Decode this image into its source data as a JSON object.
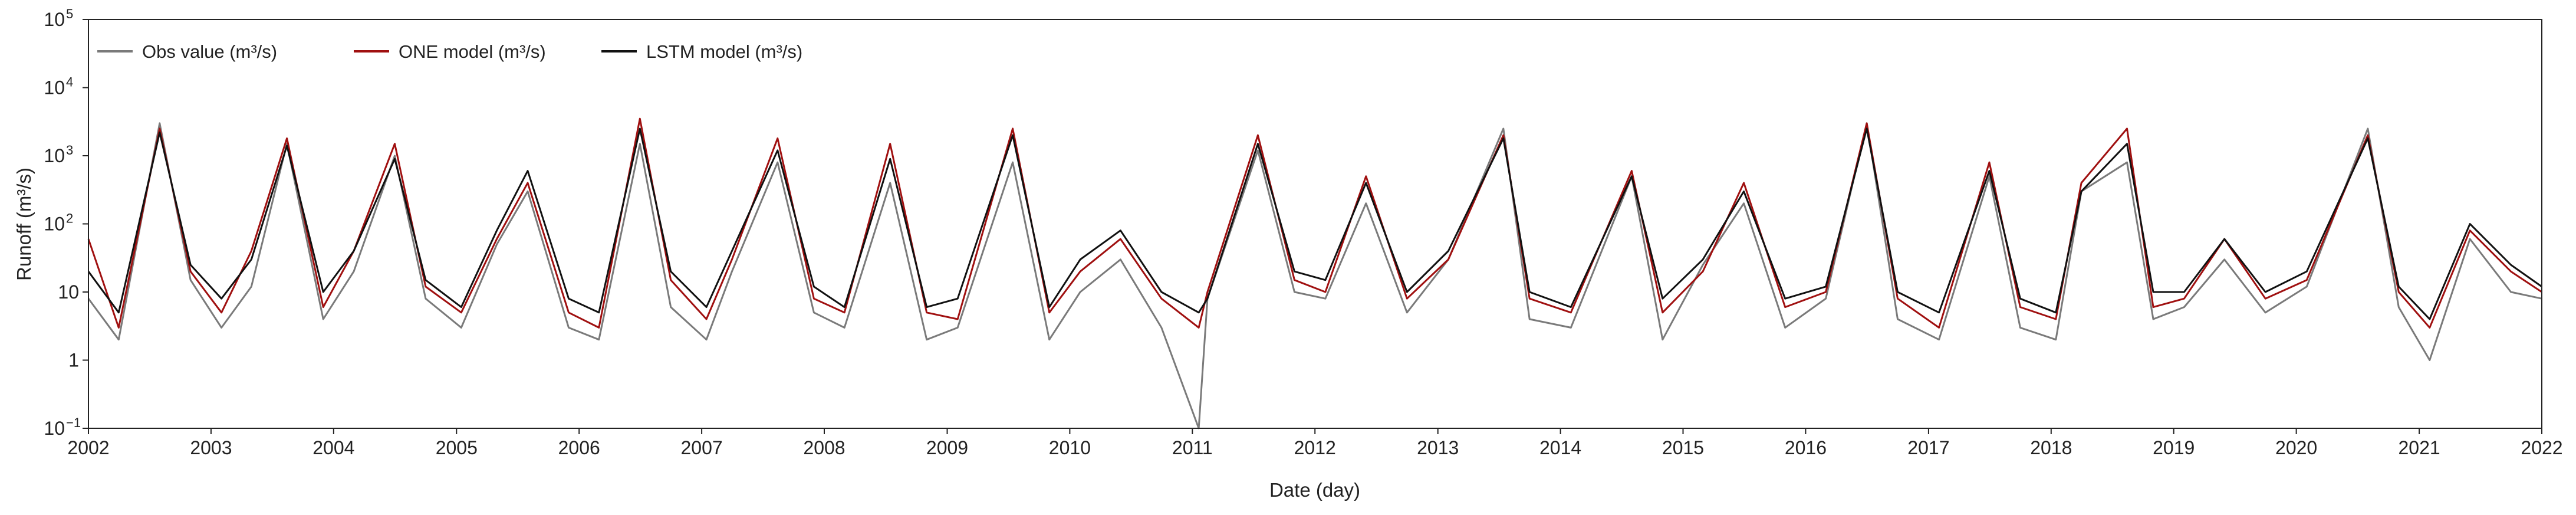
{
  "chart_data": {
    "type": "line",
    "xlabel": "Date (day)",
    "ylabel": "Runoff (m³/s)",
    "x_range": [
      "2002-01-01",
      "2022-01-01"
    ],
    "x_ticks": [
      "2002",
      "2003",
      "2004",
      "2005",
      "2006",
      "2007",
      "2008",
      "2009",
      "2010",
      "2011",
      "2012",
      "2013",
      "2014",
      "2015",
      "2016",
      "2017",
      "2018",
      "2019",
      "2020",
      "2021",
      "2022"
    ],
    "y_scale": "log",
    "ylim": [
      0.1,
      100000
    ],
    "y_ticks": [
      {
        "value": 0.1,
        "base": "10",
        "exp": "−1"
      },
      {
        "value": 1,
        "base": "1",
        "exp": ""
      },
      {
        "value": 10,
        "base": "10",
        "exp": ""
      },
      {
        "value": 100,
        "base": "10",
        "exp": "2"
      },
      {
        "value": 1000,
        "base": "10",
        "exp": "3"
      },
      {
        "value": 10000,
        "base": "10",
        "exp": "4"
      },
      {
        "value": 100000,
        "base": "10",
        "exp": "5"
      }
    ],
    "grid": false,
    "legend_position": "top-left",
    "series": [
      {
        "name": "Obs value (m³/s)",
        "color": "#7a7a7a",
        "x": [
          "2002-01-01",
          "2002-04-01",
          "2002-08-01",
          "2002-11-01",
          "2003-02-01",
          "2003-05-01",
          "2003-08-15",
          "2003-12-01",
          "2004-03-01",
          "2004-07-01",
          "2004-10-01",
          "2005-01-15",
          "2005-05-01",
          "2005-08-01",
          "2005-12-01",
          "2006-03-01",
          "2006-07-01",
          "2006-10-01",
          "2007-01-15",
          "2007-04-01",
          "2007-08-15",
          "2007-12-01",
          "2008-03-01",
          "2008-07-15",
          "2008-11-01",
          "2009-02-01",
          "2009-07-15",
          "2009-11-01",
          "2010-02-01",
          "2010-06-01",
          "2010-10-01",
          "2011-01-20",
          "2011-02-15",
          "2011-07-15",
          "2011-11-01",
          "2012-02-01",
          "2012-06-01",
          "2012-10-01",
          "2013-02-01",
          "2013-07-15",
          "2013-10-01",
          "2014-02-01",
          "2014-08-01",
          "2014-11-01",
          "2015-03-01",
          "2015-07-01",
          "2015-11-01",
          "2016-03-01",
          "2016-07-01",
          "2016-10-01",
          "2017-02-01",
          "2017-07-01",
          "2017-10-01",
          "2018-01-15",
          "2018-04-01",
          "2018-08-15",
          "2018-11-01",
          "2019-02-01",
          "2019-06-01",
          "2019-10-01",
          "2020-02-01",
          "2020-08-01",
          "2020-11-01",
          "2021-02-01",
          "2021-06-01",
          "2021-10-01",
          "2022-01-01"
        ],
        "values": [
          8,
          2,
          3000,
          15,
          3,
          12,
          1500,
          4,
          20,
          1000,
          8,
          3,
          50,
          300,
          3,
          2,
          1500,
          6,
          2,
          20,
          800,
          5,
          3,
          400,
          2,
          3,
          800,
          2,
          10,
          30,
          3,
          0.1,
          8,
          1200,
          10,
          8,
          200,
          5,
          30,
          2500,
          4,
          3,
          500,
          2,
          25,
          200,
          3,
          8,
          3000,
          4,
          2,
          500,
          3,
          2,
          300,
          800,
          4,
          6,
          30,
          5,
          12,
          2500,
          6,
          1,
          60,
          10,
          8
        ]
      },
      {
        "name": "ONE model (m³/s)",
        "color": "#a01010",
        "x": [
          "2002-01-01",
          "2002-04-01",
          "2002-08-01",
          "2002-11-01",
          "2003-02-01",
          "2003-05-01",
          "2003-08-15",
          "2003-12-01",
          "2004-03-01",
          "2004-07-01",
          "2004-10-01",
          "2005-01-15",
          "2005-05-01",
          "2005-08-01",
          "2005-12-01",
          "2006-03-01",
          "2006-07-01",
          "2006-10-01",
          "2007-01-15",
          "2007-04-01",
          "2007-08-15",
          "2007-12-01",
          "2008-03-01",
          "2008-07-15",
          "2008-11-01",
          "2009-02-01",
          "2009-07-15",
          "2009-11-01",
          "2010-02-01",
          "2010-06-01",
          "2010-10-01",
          "2011-01-20",
          "2011-02-15",
          "2011-07-15",
          "2011-11-01",
          "2012-02-01",
          "2012-06-01",
          "2012-10-01",
          "2013-02-01",
          "2013-07-15",
          "2013-10-01",
          "2014-02-01",
          "2014-08-01",
          "2014-11-01",
          "2015-03-01",
          "2015-07-01",
          "2015-11-01",
          "2016-03-01",
          "2016-07-01",
          "2016-10-01",
          "2017-02-01",
          "2017-07-01",
          "2017-10-01",
          "2018-01-15",
          "2018-04-01",
          "2018-08-15",
          "2018-11-01",
          "2019-02-01",
          "2019-06-01",
          "2019-10-01",
          "2020-02-01",
          "2020-08-01",
          "2020-11-01",
          "2021-02-01",
          "2021-06-01",
          "2021-10-01",
          "2022-01-01"
        ],
        "values": [
          60,
          3,
          2500,
          20,
          5,
          40,
          1800,
          6,
          40,
          1500,
          12,
          5,
          60,
          400,
          5,
          3,
          3500,
          15,
          4,
          30,
          1800,
          8,
          5,
          1500,
          5,
          4,
          2500,
          5,
          20,
          60,
          8,
          3,
          10,
          2000,
          15,
          10,
          500,
          8,
          30,
          2000,
          8,
          5,
          600,
          5,
          20,
          400,
          6,
          10,
          3000,
          8,
          3,
          800,
          6,
          4,
          400,
          2500,
          6,
          8,
          60,
          8,
          15,
          2000,
          10,
          3,
          80,
          20,
          10
        ]
      },
      {
        "name": "LSTM model (m³/s)",
        "color": "#111111",
        "x": [
          "2002-01-01",
          "2002-04-01",
          "2002-08-01",
          "2002-11-01",
          "2003-02-01",
          "2003-05-01",
          "2003-08-15",
          "2003-12-01",
          "2004-03-01",
          "2004-07-01",
          "2004-10-01",
          "2005-01-15",
          "2005-05-01",
          "2005-08-01",
          "2005-12-01",
          "2006-03-01",
          "2006-07-01",
          "2006-10-01",
          "2007-01-15",
          "2007-04-01",
          "2007-08-15",
          "2007-12-01",
          "2008-03-01",
          "2008-07-15",
          "2008-11-01",
          "2009-02-01",
          "2009-07-15",
          "2009-11-01",
          "2010-02-01",
          "2010-06-01",
          "2010-10-01",
          "2011-01-20",
          "2011-02-15",
          "2011-07-15",
          "2011-11-01",
          "2012-02-01",
          "2012-06-01",
          "2012-10-01",
          "2013-02-01",
          "2013-07-15",
          "2013-10-01",
          "2014-02-01",
          "2014-08-01",
          "2014-11-01",
          "2015-03-01",
          "2015-07-01",
          "2015-11-01",
          "2016-03-01",
          "2016-07-01",
          "2016-10-01",
          "2017-02-01",
          "2017-07-01",
          "2017-10-01",
          "2018-01-15",
          "2018-04-01",
          "2018-08-15",
          "2018-11-01",
          "2019-02-01",
          "2019-06-01",
          "2019-10-01",
          "2020-02-01",
          "2020-08-01",
          "2020-11-01",
          "2021-02-01",
          "2021-06-01",
          "2021-10-01",
          "2022-01-01"
        ],
        "values": [
          20,
          5,
          2200,
          25,
          8,
          30,
          1400,
          10,
          40,
          900,
          15,
          6,
          80,
          600,
          8,
          5,
          2500,
          20,
          6,
          40,
          1200,
          12,
          6,
          900,
          6,
          8,
          2000,
          6,
          30,
          80,
          10,
          5,
          8,
          1500,
          20,
          15,
          400,
          10,
          40,
          1800,
          10,
          6,
          500,
          8,
          30,
          300,
          8,
          12,
          2500,
          10,
          5,
          600,
          8,
          5,
          300,
          1500,
          10,
          10,
          60,
          10,
          20,
          1800,
          12,
          4,
          100,
          25,
          12
        ]
      }
    ]
  }
}
